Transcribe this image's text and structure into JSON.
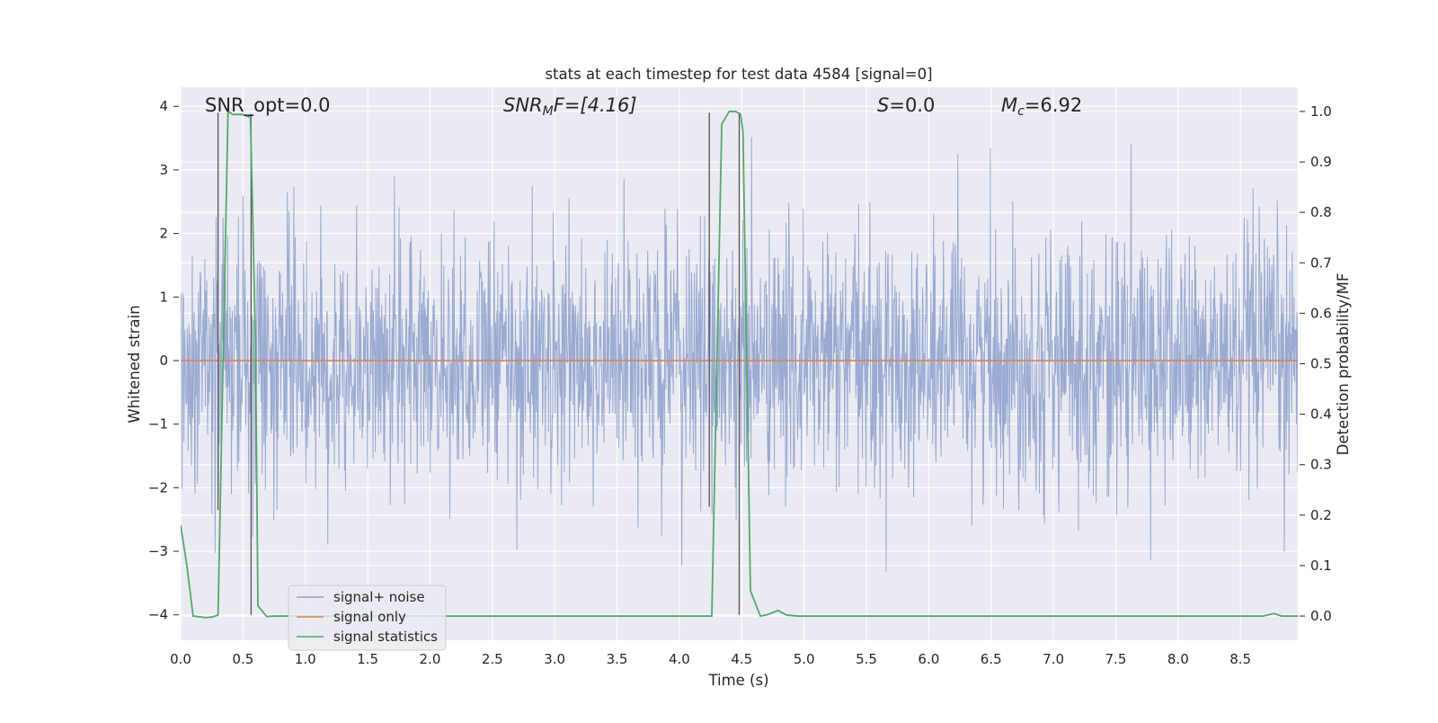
{
  "chart_data": {
    "type": "line",
    "title": "stats at each timestep for test data 4584 [signal=0]",
    "xlabel": "Time (s)",
    "ylabel_left": "Whitened strain",
    "ylabel_right": "Detection probability/MF",
    "xlim": [
      0.0,
      8.96
    ],
    "ylim_left": [
      -4.4,
      4.3
    ],
    "ylim_right": [
      -0.048,
      1.048
    ],
    "x_ticks": [
      "0.0",
      "0.5",
      "1.0",
      "1.5",
      "2.0",
      "2.5",
      "3.0",
      "3.5",
      "4.0",
      "4.5",
      "5.0",
      "5.5",
      "6.0",
      "6.5",
      "7.0",
      "7.5",
      "8.0",
      "8.5"
    ],
    "y_left_ticks": [
      "4",
      "3",
      "2",
      "1",
      "0",
      "−1",
      "−2",
      "−3",
      "−4"
    ],
    "y_right_ticks": [
      "1.0",
      "0.9",
      "0.8",
      "0.7",
      "0.6",
      "0.5",
      "0.4",
      "0.3",
      "0.2",
      "0.1",
      "0.0"
    ],
    "grid": true,
    "legend_position": "lower-left",
    "annotations": {
      "snr_opt": "SNR_opt=0.0",
      "snr_mf_pre": "SNR",
      "snr_mf_sub": "M",
      "snr_mf_post": "F=[4.16]",
      "s_name": "S",
      "s_value": "=0.0",
      "mc_name": "M",
      "mc_sub": "c",
      "mc_value": "=6.92"
    },
    "series": [
      {
        "name": "signal+ noise",
        "color": "#8c9fcb",
        "description_value": "whitened noise, amplitude mostly within ±2.5, peaks to about ±4"
      },
      {
        "name": "signal only",
        "color": "#dd8452",
        "x": [
          0.0,
          8.96
        ],
        "y": [
          0.0,
          0.0
        ]
      },
      {
        "name": "signal statistics",
        "color": "#55a868",
        "axis": "right",
        "x": [
          0.0,
          0.05,
          0.1,
          0.2,
          0.25,
          0.3,
          0.38,
          0.42,
          0.5,
          0.56,
          0.6,
          0.62,
          0.69,
          0.75,
          1.0,
          2.0,
          3.0,
          4.0,
          4.25,
          4.26,
          4.34,
          4.4,
          4.45,
          4.49,
          4.51,
          4.57,
          4.65,
          4.71,
          4.79,
          4.86,
          4.95,
          5.5,
          6.5,
          7.5,
          8.5,
          8.68,
          8.77,
          8.83,
          8.96
        ],
        "y": [
          0.18,
          0.1,
          0.0,
          -0.003,
          -0.002,
          0.002,
          1.0,
          0.994,
          0.994,
          0.988,
          0.55,
          0.02,
          -0.001,
          0.0,
          0.0,
          0.0,
          0.0,
          0.0,
          0.0,
          0.0,
          0.975,
          1.0,
          1.0,
          0.995,
          0.96,
          0.05,
          0.0,
          0.003,
          0.011,
          0.002,
          0.0,
          0.0,
          0.0,
          0.0,
          0.0,
          0.0,
          0.005,
          0.0,
          0.0
        ]
      }
    ],
    "vertical_markers": [
      {
        "x": 0.3,
        "from": -2.35,
        "to": 3.9
      },
      {
        "x": 0.565,
        "from": -4.0,
        "to": 3.88
      },
      {
        "x": 4.24,
        "from": -2.3,
        "to": 3.9
      },
      {
        "x": 4.48,
        "from": -4.0,
        "to": 3.9
      }
    ],
    "colors": {
      "plot_bg": "#eaeaf2",
      "grid": "#ffffff",
      "marker": "#555555",
      "text": "#262626"
    }
  }
}
